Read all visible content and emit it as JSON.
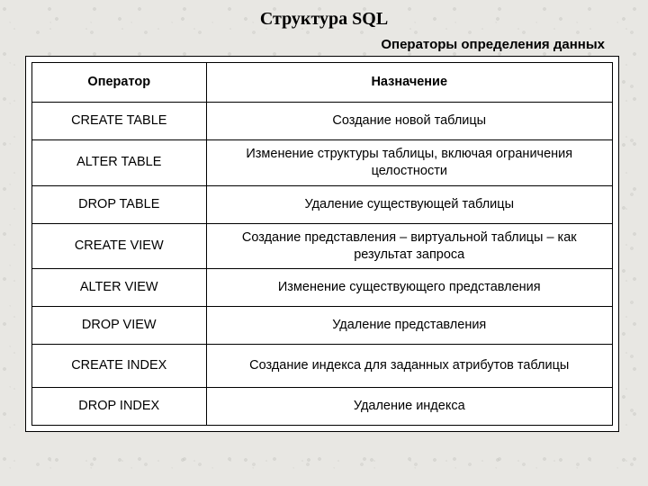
{
  "title": "Структура SQL",
  "subtitle": "Операторы определения данных",
  "table": {
    "type": "table",
    "background_color": "#ffffff",
    "border_color": "#000000",
    "font_family": "Arial",
    "header_fontsize": 15,
    "cell_fontsize": 14.5,
    "col_widths": [
      0.3,
      0.7
    ],
    "columns": [
      "Оператор",
      "Назначение"
    ],
    "rows": [
      [
        "CREATE TABLE",
        "Создание новой таблицы"
      ],
      [
        "ALTER TABLE",
        "Изменение структуры таблицы, включая ограничения целостности"
      ],
      [
        "DROP TABLE",
        "Удаление существующей таблицы"
      ],
      [
        "CREATE VIEW",
        "Создание представления – виртуальной таблицы – как результат запроса"
      ],
      [
        "ALTER VIEW",
        "Изменение существующего представления"
      ],
      [
        "DROP VIEW",
        "Удаление представления"
      ],
      [
        "CREATE INDEX",
        "Создание индекса для заданных атрибутов таблицы"
      ],
      [
        "DROP INDEX",
        "Удаление индекса"
      ]
    ]
  },
  "page_background_color": "#e8e7e3",
  "title_fontsize": 20,
  "title_font_family": "Times New Roman",
  "subtitle_fontsize": 15
}
